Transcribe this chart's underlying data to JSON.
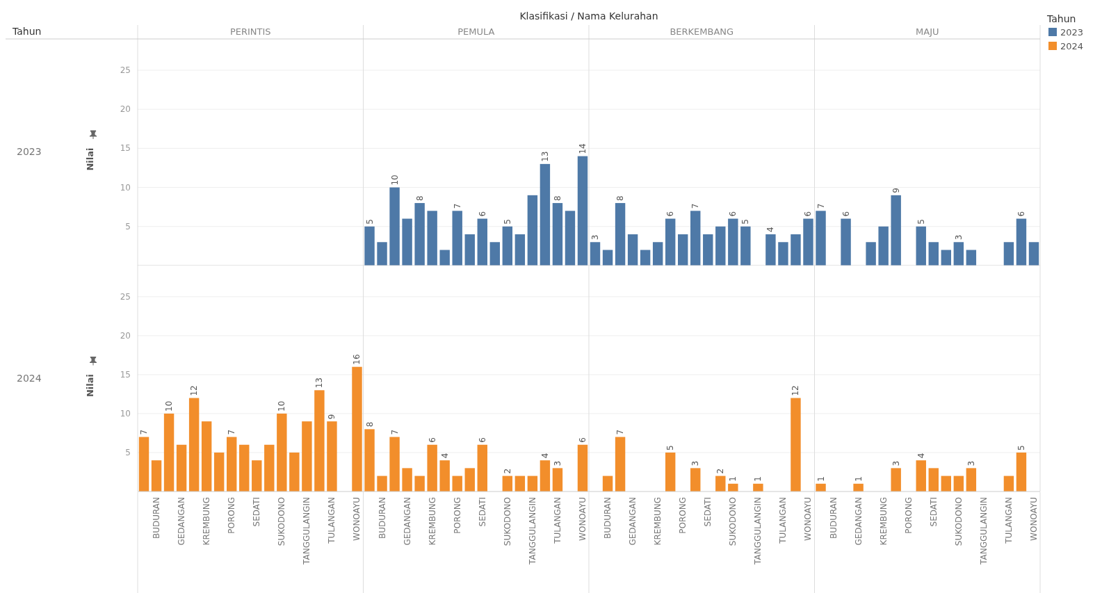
{
  "chart_data": [
    {
      "type": "bar",
      "ylabel": "Nilai",
      "legend": "right",
      "legend_title": "Tahun",
      "grid": "y",
      "tick_labels": "y",
      "ylim": [
        0,
        29
      ],
      "yticks": [
        5,
        10,
        15,
        20,
        25
      ],
      "annotations": [
        "2023",
        "Klasifikasi / Nama Kelurahan",
        "Tahun",
        "PERINTIS",
        "PEMULA",
        "BERKEMBANG",
        "MAJU"
      ],
      "categories": [
        null,
        null,
        null,
        null,
        null,
        null,
        null,
        null,
        null,
        null,
        null,
        null,
        null,
        null,
        null,
        null,
        null,
        null,
        null,
        null,
        null,
        null,
        null,
        null,
        null,
        null,
        null,
        null,
        null,
        null,
        null,
        null,
        null,
        null,
        null,
        null,
        null,
        null,
        null,
        null,
        null,
        null,
        null,
        null,
        null,
        null,
        null,
        null,
        null,
        null,
        null,
        null,
        null,
        null,
        null,
        null,
        null,
        null,
        null,
        null,
        null,
        null,
        null,
        null,
        null,
        null,
        null,
        null,
        null,
        null,
        null,
        null
      ],
      "series": [
        {
          "name": "2023",
          "color": "#4e79a7",
          "values": [
            null,
            null,
            null,
            null,
            null,
            null,
            null,
            null,
            null,
            null,
            null,
            null,
            null,
            null,
            null,
            null,
            null,
            null,
            5,
            3,
            10,
            6,
            8,
            7,
            2,
            7,
            4,
            6,
            3,
            5,
            4,
            9,
            13,
            8,
            7,
            14,
            3,
            2,
            8,
            4,
            2,
            3,
            6,
            4,
            7,
            4,
            5,
            6,
            5,
            null,
            4,
            3,
            4,
            6,
            7,
            null,
            6,
            null,
            3,
            5,
            9,
            null,
            5,
            3,
            2,
            3,
            2,
            null,
            null,
            3,
            6,
            3
          ],
          "value_labels": [
            null,
            null,
            null,
            null,
            null,
            null,
            null,
            null,
            null,
            null,
            null,
            null,
            null,
            null,
            null,
            null,
            null,
            null,
            "5",
            null,
            "10",
            null,
            "8",
            null,
            null,
            "7",
            null,
            "6",
            null,
            "5",
            null,
            null,
            "13",
            "8",
            null,
            "14",
            "3",
            null,
            "8",
            null,
            null,
            null,
            "6",
            null,
            "7",
            null,
            null,
            "6",
            "5",
            null,
            "4",
            null,
            null,
            "6",
            "7",
            null,
            "6",
            null,
            null,
            null,
            "9",
            null,
            "5",
            null,
            null,
            "3",
            null,
            null,
            null,
            null,
            "6",
            null
          ]
        }
      ]
    },
    {
      "type": "bar",
      "ylabel": "Nilai",
      "legend": "right",
      "grid": "y",
      "ylim": [
        0,
        29
      ],
      "yticks": [
        5,
        10,
        15,
        20,
        25
      ],
      "annotations": [
        "2024"
      ],
      "categories": [
        null,
        "BUDURAN",
        null,
        "GEDANGAN",
        null,
        "KREMBUNG",
        null,
        "PORONG",
        null,
        "SEDATI",
        null,
        "SUKODONO",
        null,
        "TANGGULANGIN",
        null,
        "TULANGAN",
        null,
        "WONOAYU",
        null,
        "BUDURAN",
        null,
        "GEDANGAN",
        null,
        "KREMBUNG",
        null,
        "PORONG",
        null,
        "SEDATI",
        null,
        "SUKODONO",
        null,
        "TANGGULANGIN",
        null,
        "TULANGAN",
        null,
        "WONOAYU",
        null,
        "BUDURAN",
        null,
        "GEDANGAN",
        null,
        "KREMBUNG",
        null,
        "PORONG",
        null,
        "SEDATI",
        null,
        "SUKODONO",
        null,
        "TANGGULANGIN",
        null,
        "TULANGAN",
        null,
        "WONOAYU",
        null,
        "BUDURAN",
        null,
        "GEDANGAN",
        null,
        "KREMBUNG",
        null,
        "PORONG",
        null,
        "SEDATI",
        null,
        "SUKODONO",
        null,
        "TANGGULANGIN",
        null,
        "TULANGAN",
        null,
        "WONOAYU"
      ],
      "series": [
        {
          "name": "2024",
          "color": "#f28e2b",
          "values": [
            7,
            4,
            10,
            6,
            12,
            9,
            5,
            7,
            6,
            4,
            6,
            10,
            5,
            9,
            13,
            9,
            null,
            16,
            8,
            2,
            7,
            3,
            2,
            6,
            4,
            2,
            3,
            6,
            null,
            2,
            2,
            2,
            4,
            3,
            null,
            6,
            null,
            2,
            7,
            null,
            null,
            null,
            5,
            null,
            3,
            null,
            2,
            1,
            null,
            1,
            null,
            null,
            12,
            null,
            1,
            null,
            null,
            1,
            null,
            null,
            3,
            null,
            4,
            3,
            2,
            2,
            3,
            null,
            null,
            2,
            5,
            null
          ],
          "value_labels": [
            "7",
            null,
            "10",
            null,
            "12",
            null,
            null,
            "7",
            null,
            null,
            null,
            "10",
            null,
            null,
            "13",
            "9",
            null,
            "16",
            "8",
            null,
            "7",
            null,
            null,
            "6",
            "4",
            null,
            null,
            "6",
            null,
            "2",
            null,
            null,
            "4",
            "3",
            null,
            "6",
            null,
            null,
            "7",
            null,
            null,
            null,
            "5",
            null,
            "3",
            null,
            "2",
            "1",
            null,
            "1",
            null,
            null,
            "12",
            null,
            "1",
            null,
            null,
            "1",
            null,
            null,
            "3",
            null,
            "4",
            null,
            null,
            null,
            "3",
            null,
            null,
            null,
            "5",
            null
          ]
        }
      ]
    }
  ]
}
